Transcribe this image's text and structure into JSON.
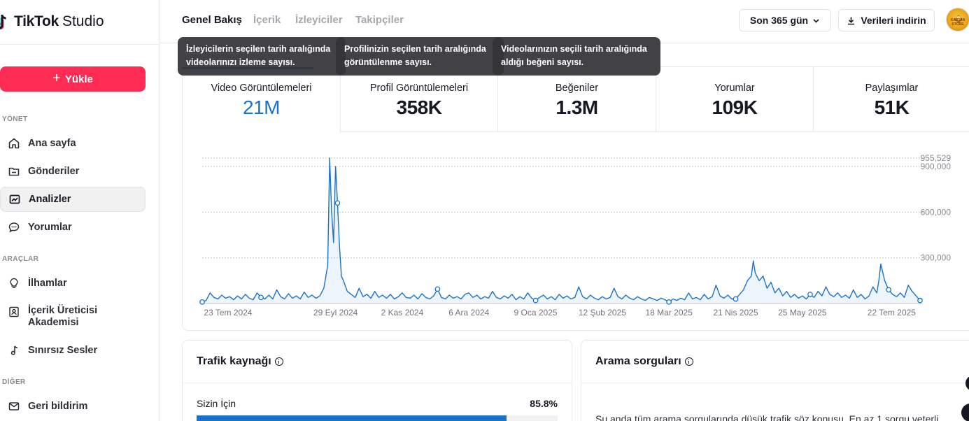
{
  "app": {
    "logo_a": "TikTok",
    "logo_b": "Studio"
  },
  "sidebar": {
    "upload_label": "Yükle",
    "sections": {
      "manage": "YÖNET",
      "tools": "ARAÇLAR",
      "other": "DİĞER"
    },
    "items": [
      {
        "label": "Ana sayfa",
        "icon": "home-icon"
      },
      {
        "label": "Gönderiler",
        "icon": "folder-icon"
      },
      {
        "label": "Analizler",
        "icon": "analytics-icon"
      },
      {
        "label": "Yorumlar",
        "icon": "comment-icon"
      },
      {
        "label": "İlhamlar",
        "icon": "lightbulb-icon"
      },
      {
        "label": "İçerik Üreticisi",
        "label2": "Akademisi",
        "icon": "academy-icon"
      },
      {
        "label": "Sınırsız Sesler",
        "icon": "music-note-icon"
      },
      {
        "label": "Geri bildirim",
        "icon": "mail-icon"
      }
    ]
  },
  "header": {
    "tabs": [
      "Genel Bakış",
      "İçerik",
      "İzleyiciler",
      "Takipçiler"
    ],
    "period": "Son 365 gün",
    "download": "Verileri indirin",
    "avatar_text": "KAPTAN STORE"
  },
  "tooltips": [
    {
      "l1": "İzleyicilerin seçilen tarih aralığında",
      "l2": "videolarınızı izleme sayısı."
    },
    {
      "l1": "Profilinizin seçilen tarih aralığında",
      "l2": "görüntülenme sayısı."
    },
    {
      "l1": "Videolarınızın seçili tarih aralığında",
      "l2": "aldığı beğeni sayısı."
    }
  ],
  "metrics": [
    {
      "label": "Video Görüntülemeleri",
      "value": "21M"
    },
    {
      "label": "Profil Görüntülemeleri",
      "value": "358K"
    },
    {
      "label": "Beğeniler",
      "value": "1.3M"
    },
    {
      "label": "Yorumlar",
      "value": "109K"
    },
    {
      "label": "Paylaşımlar",
      "value": "51K"
    }
  ],
  "chart_data": {
    "type": "line",
    "title": "",
    "xlabel": "",
    "ylabel": "",
    "ylim": [
      0,
      955529
    ],
    "y_ticks": [
      "955,529",
      "900,000",
      "600,000",
      "300,000"
    ],
    "y_tick_values": [
      955529,
      900000,
      600000,
      300000
    ],
    "x_tick_labels": [
      "23 Tem 2024",
      "29 Eyl 2024",
      "2 Kas 2024",
      "6 Ara 2024",
      "9 Oca 2025",
      "12 Şub 2025",
      "18 Mar 2025",
      "21 Nis 2025",
      "25 May 2025",
      "22 Tem 2025"
    ],
    "x_tick_days": [
      0,
      68,
      102,
      136,
      170,
      204,
      238,
      272,
      306,
      364
    ],
    "series": [
      {
        "color": "#1a73c9",
        "points": [
          [
            0,
            10000
          ],
          [
            2,
            20000
          ],
          [
            4,
            70000
          ],
          [
            6,
            40000
          ],
          [
            8,
            30000
          ],
          [
            10,
            55000
          ],
          [
            12,
            35000
          ],
          [
            14,
            45000
          ],
          [
            16,
            25000
          ],
          [
            18,
            50000
          ],
          [
            20,
            30000
          ],
          [
            22,
            60000
          ],
          [
            24,
            35000
          ],
          [
            26,
            25000
          ],
          [
            28,
            70000
          ],
          [
            30,
            40000
          ],
          [
            32,
            30000
          ],
          [
            34,
            55000
          ],
          [
            36,
            30000
          ],
          [
            38,
            90000
          ],
          [
            40,
            45000
          ],
          [
            42,
            30000
          ],
          [
            44,
            65000
          ],
          [
            46,
            35000
          ],
          [
            48,
            50000
          ],
          [
            50,
            30000
          ],
          [
            52,
            75000
          ],
          [
            54,
            40000
          ],
          [
            56,
            55000
          ],
          [
            58,
            35000
          ],
          [
            60,
            50000
          ],
          [
            62,
            100000
          ],
          [
            64,
            250000
          ],
          [
            65,
            955529
          ],
          [
            66,
            600000
          ],
          [
            67,
            400000
          ],
          [
            68,
            900000
          ],
          [
            69,
            660000
          ],
          [
            70,
            380000
          ],
          [
            71,
            180000
          ],
          [
            72,
            150000
          ],
          [
            74,
            80000
          ],
          [
            76,
            60000
          ],
          [
            78,
            40000
          ],
          [
            80,
            100000
          ],
          [
            82,
            45000
          ],
          [
            84,
            60000
          ],
          [
            86,
            35000
          ],
          [
            88,
            80000
          ],
          [
            90,
            40000
          ],
          [
            92,
            55000
          ],
          [
            94,
            35000
          ],
          [
            96,
            60000
          ],
          [
            98,
            30000
          ],
          [
            100,
            45000
          ],
          [
            102,
            70000
          ],
          [
            104,
            40000
          ],
          [
            106,
            35000
          ],
          [
            108,
            55000
          ],
          [
            110,
            30000
          ],
          [
            112,
            65000
          ],
          [
            114,
            40000
          ],
          [
            116,
            30000
          ],
          [
            118,
            50000
          ],
          [
            120,
            95000
          ],
          [
            122,
            40000
          ],
          [
            124,
            30000
          ],
          [
            126,
            55000
          ],
          [
            128,
            35000
          ],
          [
            130,
            45000
          ],
          [
            132,
            30000
          ],
          [
            134,
            60000
          ],
          [
            136,
            70000
          ],
          [
            138,
            40000
          ],
          [
            140,
            55000
          ],
          [
            142,
            30000
          ],
          [
            144,
            45000
          ],
          [
            146,
            35000
          ],
          [
            148,
            80000
          ],
          [
            150,
            40000
          ],
          [
            152,
            30000
          ],
          [
            154,
            50000
          ],
          [
            156,
            35000
          ],
          [
            158,
            60000
          ],
          [
            160,
            25000
          ],
          [
            162,
            45000
          ],
          [
            164,
            30000
          ],
          [
            166,
            70000
          ],
          [
            168,
            35000
          ],
          [
            170,
            20000
          ],
          [
            172,
            40000
          ],
          [
            174,
            55000
          ],
          [
            176,
            30000
          ],
          [
            178,
            45000
          ],
          [
            180,
            25000
          ],
          [
            182,
            60000
          ],
          [
            184,
            35000
          ],
          [
            186,
            50000
          ],
          [
            188,
            30000
          ],
          [
            190,
            40000
          ],
          [
            192,
            110000
          ],
          [
            194,
            45000
          ],
          [
            196,
            30000
          ],
          [
            198,
            55000
          ],
          [
            200,
            35000
          ],
          [
            202,
            25000
          ],
          [
            204,
            45000
          ],
          [
            206,
            30000
          ],
          [
            208,
            40000
          ],
          [
            210,
            100000
          ],
          [
            212,
            45000
          ],
          [
            214,
            30000
          ],
          [
            216,
            55000
          ],
          [
            218,
            35000
          ],
          [
            220,
            25000
          ],
          [
            222,
            45000
          ],
          [
            224,
            30000
          ],
          [
            226,
            20000
          ],
          [
            228,
            40000
          ],
          [
            230,
            30000
          ],
          [
            232,
            20000
          ],
          [
            234,
            35000
          ],
          [
            236,
            25000
          ],
          [
            238,
            10000
          ],
          [
            240,
            30000
          ],
          [
            242,
            20000
          ],
          [
            244,
            35000
          ],
          [
            246,
            25000
          ],
          [
            248,
            70000
          ],
          [
            250,
            30000
          ],
          [
            252,
            40000
          ],
          [
            254,
            25000
          ],
          [
            256,
            60000
          ],
          [
            258,
            30000
          ],
          [
            260,
            45000
          ],
          [
            262,
            120000
          ],
          [
            264,
            50000
          ],
          [
            266,
            35000
          ],
          [
            268,
            55000
          ],
          [
            270,
            30000
          ],
          [
            272,
            30000
          ],
          [
            274,
            60000
          ],
          [
            276,
            90000
          ],
          [
            278,
            150000
          ],
          [
            280,
            180000
          ],
          [
            281,
            280000
          ],
          [
            282,
            200000
          ],
          [
            284,
            150000
          ],
          [
            286,
            180000
          ],
          [
            288,
            100000
          ],
          [
            290,
            140000
          ],
          [
            292,
            70000
          ],
          [
            294,
            100000
          ],
          [
            296,
            50000
          ],
          [
            298,
            80000
          ],
          [
            300,
            40000
          ],
          [
            302,
            60000
          ],
          [
            304,
            35000
          ],
          [
            306,
            50000
          ],
          [
            308,
            30000
          ],
          [
            310,
            60000
          ],
          [
            312,
            40000
          ],
          [
            314,
            80000
          ],
          [
            316,
            50000
          ],
          [
            318,
            110000
          ],
          [
            320,
            60000
          ],
          [
            322,
            45000
          ],
          [
            324,
            70000
          ],
          [
            326,
            40000
          ],
          [
            328,
            55000
          ],
          [
            330,
            35000
          ],
          [
            332,
            90000
          ],
          [
            334,
            40000
          ],
          [
            336,
            60000
          ],
          [
            338,
            30000
          ],
          [
            340,
            50000
          ],
          [
            342,
            110000
          ],
          [
            344,
            70000
          ],
          [
            345,
            150000
          ],
          [
            346,
            260000
          ],
          [
            348,
            150000
          ],
          [
            350,
            90000
          ],
          [
            352,
            60000
          ],
          [
            354,
            45000
          ],
          [
            356,
            70000
          ],
          [
            358,
            40000
          ],
          [
            360,
            120000
          ],
          [
            362,
            80000
          ],
          [
            364,
            50000
          ],
          [
            366,
            20000
          ]
        ]
      }
    ],
    "marker_days": [
      0,
      30,
      69,
      120,
      170,
      238,
      272,
      310,
      350,
      366
    ],
    "grid": true,
    "legend": "none"
  },
  "traffic": {
    "title": "Trafik kaynağı",
    "row_label": "Sizin İçin",
    "row_value": "85.8%",
    "fraction": 0.858
  },
  "search": {
    "title": "Arama sorguları",
    "message": "Şu anda tüm arama sorgularında düşük trafik söz konusu. En az 1 sorgu veterli"
  }
}
